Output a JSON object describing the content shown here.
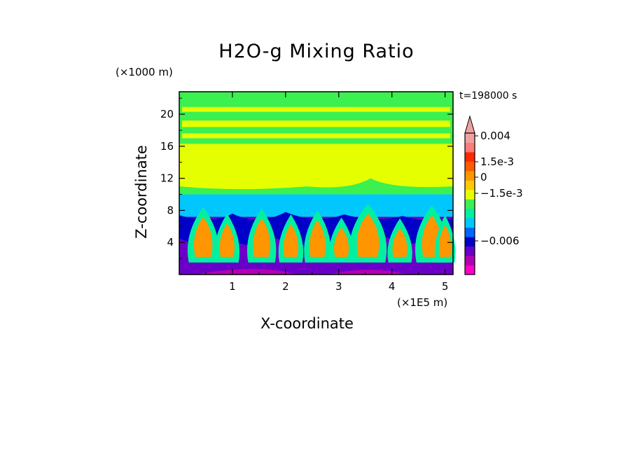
{
  "chart_data": {
    "type": "heatmap",
    "title": "H2O-g Mixing Ratio",
    "xlabel": "X-coordinate",
    "ylabel": "Z-coordinate",
    "x_multiplier": "(×1E5 m)",
    "y_multiplier": "(×1000 m)",
    "time_label": "t=198000 s",
    "xlim": [
      0,
      5.15
    ],
    "ylim": [
      0,
      22.8
    ],
    "x_ticks": [
      "1",
      "2",
      "3",
      "4",
      "5"
    ],
    "y_ticks": [
      "4",
      "8",
      "12",
      "16",
      "20"
    ],
    "x_tick_values": [
      1,
      2,
      3,
      4,
      5
    ],
    "y_tick_values": [
      4,
      8,
      12,
      16,
      20
    ],
    "colorbar": {
      "labels": [
        "0.004",
        "1.5e-3",
        "0",
        "−1.5e-3",
        "−0.006"
      ],
      "colors": [
        "#ff00c8",
        "#b400b4",
        "#6a00c8",
        "#0000c8",
        "#0064ff",
        "#00c8ff",
        "#00f0a0",
        "#3cf050",
        "#e6ff00",
        "#ffc800",
        "#ff9600",
        "#ff5a00",
        "#ff2800",
        "#ff7c7c",
        "#f0a0a0"
      ]
    },
    "layers": [
      {
        "zmin": 19.5,
        "zmax": 22.8,
        "color": "#3cf050"
      },
      {
        "zmin": 16.3,
        "zmax": 19.5,
        "color": "#3cf050"
      },
      {
        "zmin": 10.0,
        "zmax": 16.3,
        "color": "#e6ff00"
      },
      {
        "zmin": 7.2,
        "zmax": 10.0,
        "color": "#00c8ff"
      },
      {
        "zmin": 0,
        "zmax": 7.2,
        "color": "#6a00c8"
      }
    ]
  }
}
